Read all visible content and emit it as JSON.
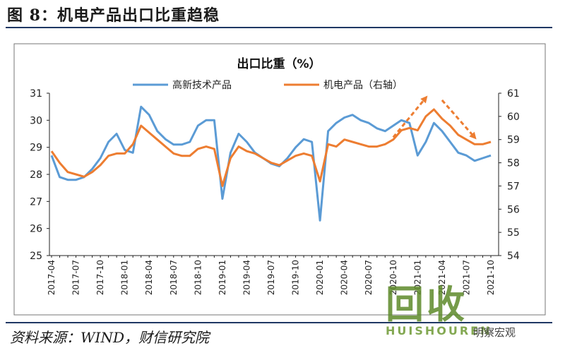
{
  "figure": {
    "title": "图 8：机电产品出口比重趋稳",
    "source": "资料来源：WIND，财信研究院"
  },
  "watermark": {
    "logo_text": "回收",
    "sub_text": "HUISHOUREN",
    "wechat": "明察宏观"
  },
  "chart_data": {
    "type": "line",
    "title": "出口比重（%）",
    "x": [
      "2017-04",
      "2017-05",
      "2017-06",
      "2017-07",
      "2017-08",
      "2017-09",
      "2017-10",
      "2017-11",
      "2017-12",
      "2018-01",
      "2018-02",
      "2018-03",
      "2018-04",
      "2018-05",
      "2018-06",
      "2018-07",
      "2018-08",
      "2018-09",
      "2018-10",
      "2018-11",
      "2018-12",
      "2019-01",
      "2019-02",
      "2019-03",
      "2019-04",
      "2019-05",
      "2019-06",
      "2019-07",
      "2019-08",
      "2019-09",
      "2019-10",
      "2019-11",
      "2019-12",
      "2020-01",
      "2020-02",
      "2020-03",
      "2020-04",
      "2020-05",
      "2020-06",
      "2020-07",
      "2020-08",
      "2020-09",
      "2020-10",
      "2020-11",
      "2020-12",
      "2021-01",
      "2021-02",
      "2021-03",
      "2021-04",
      "2021-05",
      "2021-06",
      "2021-07",
      "2021-08",
      "2021-09",
      "2021-10"
    ],
    "xtick_labels": [
      "2017-04",
      "2017-07",
      "2017-10",
      "2018-01",
      "2018-04",
      "2018-07",
      "2018-10",
      "2019-01",
      "2019-04",
      "2019-07",
      "2019-10",
      "2020-01",
      "2020-04",
      "2020-07",
      "2020-10",
      "2021-01",
      "2021-04",
      "2021-07",
      "2021-10"
    ],
    "series": [
      {
        "name": "高新技术产品",
        "axis": "left",
        "color": "#5b9bd5",
        "values": [
          28.7,
          27.9,
          27.8,
          27.8,
          27.9,
          28.2,
          28.6,
          29.2,
          29.5,
          28.9,
          28.8,
          30.5,
          30.2,
          29.6,
          29.3,
          29.1,
          29.1,
          29.2,
          29.8,
          30.0,
          30.0,
          27.1,
          28.8,
          29.5,
          29.2,
          28.8,
          28.6,
          28.4,
          28.3,
          28.6,
          29.0,
          29.3,
          29.2,
          26.3,
          29.6,
          29.9,
          30.1,
          30.2,
          30.0,
          29.9,
          29.7,
          29.6,
          29.8,
          30.0,
          29.9,
          28.7,
          29.2,
          29.9,
          29.6,
          29.2,
          28.8,
          28.7,
          28.5,
          28.6,
          28.7
        ]
      },
      {
        "name": "机电产品（右轴）",
        "axis": "right",
        "color": "#ed7d31",
        "values": [
          58.5,
          58.0,
          57.6,
          57.5,
          57.4,
          57.6,
          57.9,
          58.3,
          58.4,
          58.4,
          58.8,
          59.6,
          59.3,
          59.0,
          58.7,
          58.4,
          58.3,
          58.3,
          58.6,
          58.7,
          58.6,
          57.0,
          58.2,
          58.7,
          58.5,
          58.4,
          58.2,
          58.0,
          57.9,
          58.1,
          58.3,
          58.4,
          58.3,
          57.2,
          58.8,
          58.7,
          59.0,
          58.9,
          58.8,
          58.7,
          58.7,
          58.8,
          59.0,
          59.4,
          59.5,
          59.4,
          60.0,
          60.3,
          59.9,
          59.6,
          59.2,
          59.0,
          58.8,
          58.8,
          58.9
        ]
      }
    ],
    "y_left": {
      "min": 25,
      "max": 31,
      "ticks": [
        25,
        26,
        27,
        28,
        29,
        30,
        31
      ]
    },
    "y_right": {
      "min": 54,
      "max": 61,
      "ticks": [
        54,
        55,
        56,
        57,
        58,
        59,
        60,
        61
      ]
    },
    "grid": false,
    "legend_position": "top-center",
    "annotations": [
      {
        "type": "dashed-arrow",
        "color": "#ed7d31",
        "direction": "up",
        "from_x": "2020-10",
        "to_x": "2021-02",
        "from_y_right": 59.1,
        "to_y_right": 60.8
      },
      {
        "type": "dashed-arrow",
        "color": "#ed7d31",
        "direction": "down",
        "from_x": "2021-04",
        "to_x": "2021-08",
        "from_y_right": 60.7,
        "to_y_right": 59.1
      }
    ]
  }
}
